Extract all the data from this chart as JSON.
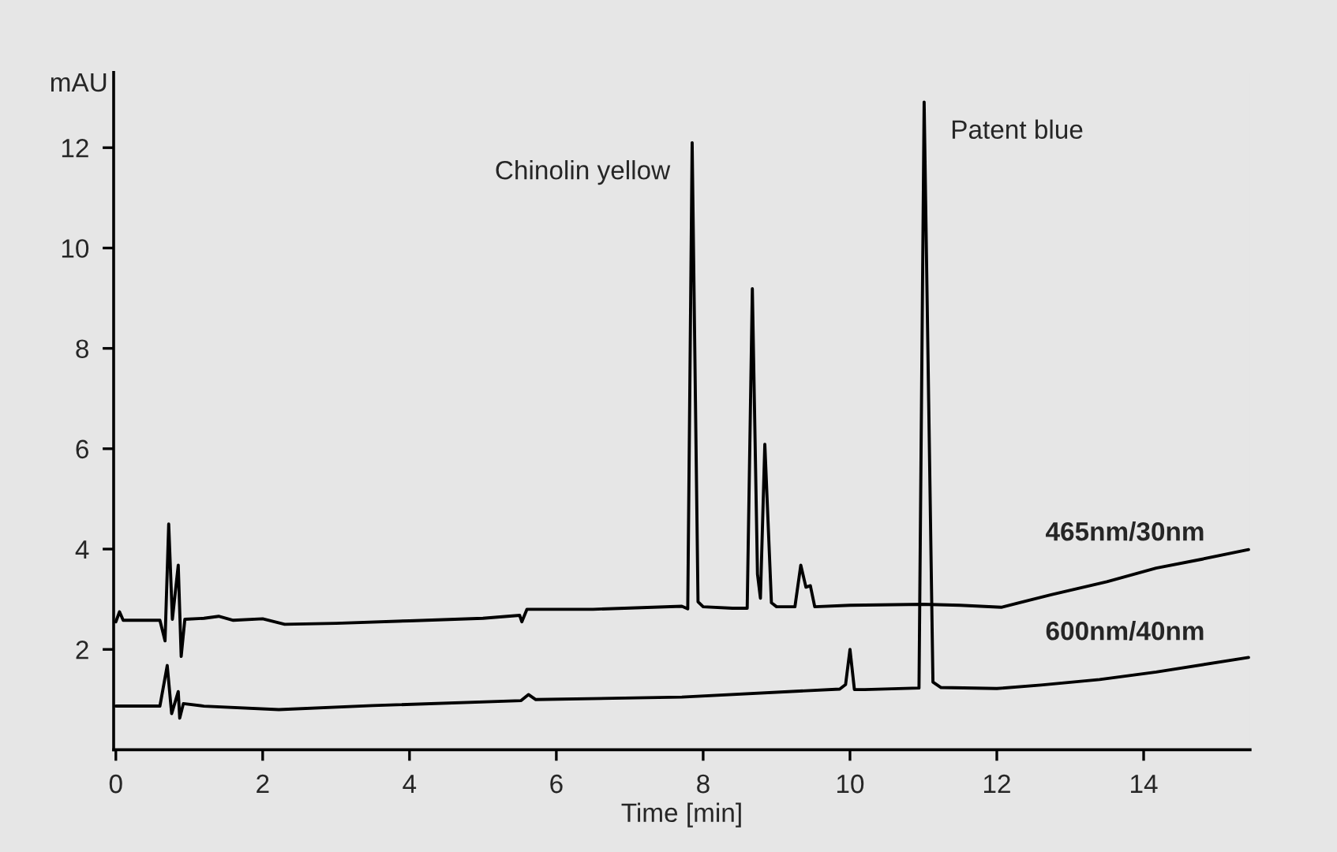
{
  "chart_data": {
    "type": "line",
    "xlabel": "Time [min]",
    "ylabel": "mAU",
    "xlim": [
      -0.03,
      15.45
    ],
    "ylim": [
      0,
      13.5
    ],
    "xticks": [
      0,
      2,
      4,
      6,
      8,
      10,
      12,
      14
    ],
    "yticks": [
      2,
      4,
      6,
      8,
      10,
      12
    ],
    "grid": false,
    "legend": false,
    "marker": "none",
    "line_style": "solid",
    "annotations": [
      {
        "text": "Chinolin yellow",
        "x": 7.85,
        "y": 12.1
      },
      {
        "text": "Patent blue",
        "x": 11.01,
        "y": 12.91
      }
    ],
    "series": [
      {
        "name": "465nm/30nm",
        "color": "#000000",
        "x": [
          0.0,
          0.05,
          0.1,
          0.6,
          0.67,
          0.72,
          0.77,
          0.85,
          0.89,
          0.94,
          1.2,
          1.4,
          1.6,
          2.0,
          2.3,
          3.0,
          4.0,
          5.0,
          5.5,
          5.53,
          5.6,
          6.5,
          7.71,
          7.79,
          7.85,
          7.93,
          8.0,
          8.4,
          8.6,
          8.67,
          8.74,
          8.78,
          8.84,
          8.93,
          9.0,
          9.25,
          9.33,
          9.4,
          9.46,
          9.52,
          10.0,
          11.0,
          11.5,
          12.06,
          12.74,
          13.5,
          14.17,
          14.8,
          15.43
        ],
        "values": [
          2.55,
          2.75,
          2.58,
          2.58,
          2.17,
          4.5,
          2.6,
          3.68,
          1.86,
          2.6,
          2.62,
          2.66,
          2.58,
          2.61,
          2.5,
          2.52,
          2.57,
          2.62,
          2.68,
          2.55,
          2.8,
          2.8,
          2.86,
          2.81,
          12.1,
          2.95,
          2.85,
          2.82,
          2.82,
          9.19,
          3.5,
          3.02,
          6.09,
          2.93,
          2.85,
          2.85,
          3.68,
          3.24,
          3.27,
          2.85,
          2.88,
          2.9,
          2.88,
          2.84,
          3.09,
          3.35,
          3.62,
          3.8,
          3.99
        ]
      },
      {
        "name": "600nm/40nm",
        "color": "#000000",
        "x": [
          0.0,
          0.6,
          0.7,
          0.76,
          0.85,
          0.87,
          0.92,
          1.2,
          2.22,
          3.5,
          5.52,
          5.62,
          5.72,
          7.71,
          9.86,
          9.94,
          10.0,
          10.06,
          10.2,
          10.94,
          11.01,
          11.13,
          11.24,
          12.0,
          12.6,
          13.4,
          14.17,
          15.43
        ],
        "values": [
          0.87,
          0.87,
          1.68,
          0.72,
          1.16,
          0.63,
          0.92,
          0.87,
          0.8,
          0.88,
          0.98,
          1.1,
          1.0,
          1.05,
          1.21,
          1.3,
          2.0,
          1.2,
          1.2,
          1.23,
          12.91,
          1.35,
          1.24,
          1.22,
          1.29,
          1.4,
          1.55,
          1.84
        ]
      }
    ]
  }
}
